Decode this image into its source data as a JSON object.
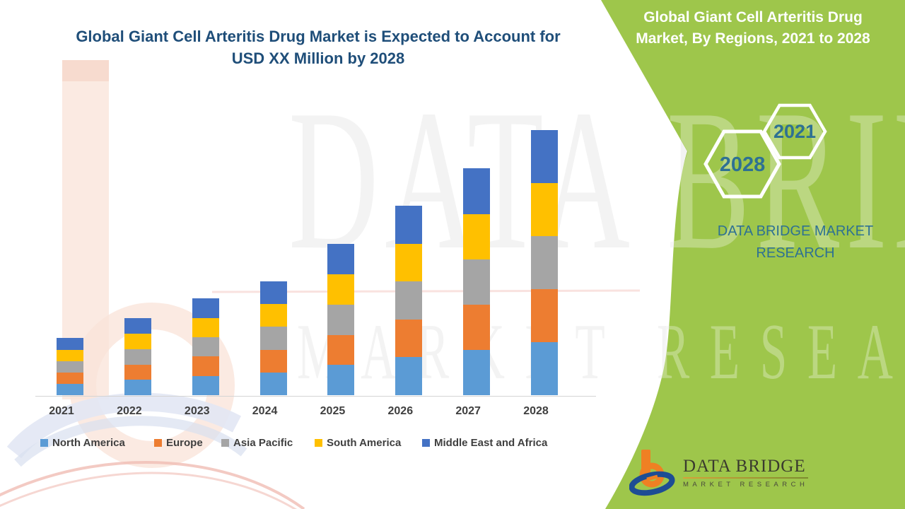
{
  "main": {
    "title_line1": "Global Giant Cell Arteritis Drug Market is Expected to Account for",
    "title_line2": "USD XX Million by 2028",
    "title_color": "#1F4E79"
  },
  "sidebar": {
    "heading_line1": "Global Giant Cell Arteritis Drug",
    "heading_line2": "Market, By Regions, 2021 to 2028",
    "hexagons": [
      {
        "label": "2028"
      },
      {
        "label": "2021"
      }
    ],
    "brand_line1": "DATA BRIDGE MARKET",
    "brand_line2": "RESEARCH",
    "background_color": "#9EC64B",
    "heading_text_color": "#FFFFFF",
    "accent_text_color": "#2E7193"
  },
  "watermark": {
    "primary": "DATA BRIDGE",
    "secondary": "MARKET RESEARCH"
  },
  "footer_logo": {
    "name": "DATA BRIDGE",
    "tagline": "MARKET RESEARCH"
  },
  "chart_data": {
    "type": "bar",
    "stacked": true,
    "title": "Global Giant Cell Arteritis Drug Market, By Regions, 2021 to 2028",
    "categories": [
      "2021",
      "2022",
      "2023",
      "2024",
      "2025",
      "2026",
      "2027",
      "2028"
    ],
    "series": [
      {
        "name": "North America",
        "color": "#5B9BD5",
        "values": [
          4.3,
          5.8,
          7.3,
          8.6,
          11.4,
          14.3,
          17.1,
          20.0
        ]
      },
      {
        "name": "Europe",
        "color": "#ED7D31",
        "values": [
          4.3,
          5.8,
          7.3,
          8.6,
          11.4,
          14.3,
          17.1,
          20.0
        ]
      },
      {
        "name": "Asia Pacific",
        "color": "#A5A5A5",
        "values": [
          4.3,
          5.8,
          7.3,
          8.6,
          11.4,
          14.3,
          17.1,
          20.0
        ]
      },
      {
        "name": "South America",
        "color": "#FFC000",
        "values": [
          4.3,
          5.8,
          7.3,
          8.6,
          11.4,
          14.3,
          17.1,
          20.0
        ]
      },
      {
        "name": "Middle East and Africa",
        "color": "#4472C4",
        "values": [
          4.3,
          5.8,
          7.3,
          8.6,
          11.4,
          14.3,
          17.1,
          20.0
        ]
      }
    ],
    "totals_relative_index": [
      21.5,
      29.0,
      36.5,
      43.0,
      57.0,
      71.5,
      85.5,
      100.0
    ],
    "xlabel": "",
    "ylabel": "",
    "ylim": [
      0,
      105
    ],
    "grid": false,
    "value_axis_visible": false,
    "legend_position": "bottom"
  }
}
